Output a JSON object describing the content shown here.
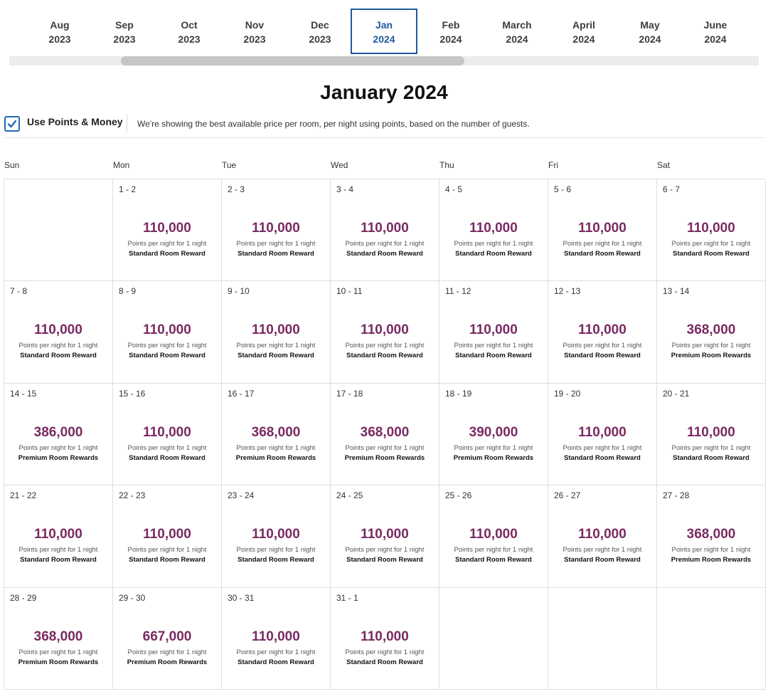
{
  "months": [
    {
      "month": "Aug",
      "year": "2023"
    },
    {
      "month": "Sep",
      "year": "2023"
    },
    {
      "month": "Oct",
      "year": "2023"
    },
    {
      "month": "Nov",
      "year": "2023"
    },
    {
      "month": "Dec",
      "year": "2023"
    },
    {
      "month": "Jan",
      "year": "2024",
      "selected": true
    },
    {
      "month": "Feb",
      "year": "2024"
    },
    {
      "month": "March",
      "year": "2024"
    },
    {
      "month": "April",
      "year": "2024"
    },
    {
      "month": "May",
      "year": "2024"
    },
    {
      "month": "June",
      "year": "2024"
    }
  ],
  "title": "January 2024",
  "options": {
    "use_points_label": "Use Points & Money",
    "use_points_checked": true,
    "info": "We're showing the best available price per room, per night using points, based on the number of guests."
  },
  "weekdays": [
    "Sun",
    "Mon",
    "Tue",
    "Wed",
    "Thu",
    "Fri",
    "Sat"
  ],
  "points_caption": "Points per night for 1 night",
  "colors": {
    "price": "#7a2a62",
    "accent": "#1f5a9e"
  },
  "days": [
    null,
    {
      "range": "1 - 2",
      "points": "110,000",
      "room": "Standard Room Reward"
    },
    {
      "range": "2 - 3",
      "points": "110,000",
      "room": "Standard Room Reward"
    },
    {
      "range": "3 - 4",
      "points": "110,000",
      "room": "Standard Room Reward"
    },
    {
      "range": "4 - 5",
      "points": "110,000",
      "room": "Standard Room Reward"
    },
    {
      "range": "5 - 6",
      "points": "110,000",
      "room": "Standard Room Reward"
    },
    {
      "range": "6 - 7",
      "points": "110,000",
      "room": "Standard Room Reward"
    },
    {
      "range": "7 - 8",
      "points": "110,000",
      "room": "Standard Room Reward"
    },
    {
      "range": "8 - 9",
      "points": "110,000",
      "room": "Standard Room Reward"
    },
    {
      "range": "9 - 10",
      "points": "110,000",
      "room": "Standard Room Reward"
    },
    {
      "range": "10 - 11",
      "points": "110,000",
      "room": "Standard Room Reward"
    },
    {
      "range": "11 - 12",
      "points": "110,000",
      "room": "Standard Room Reward"
    },
    {
      "range": "12 - 13",
      "points": "110,000",
      "room": "Standard Room Reward"
    },
    {
      "range": "13 - 14",
      "points": "368,000",
      "room": "Premium Room Rewards"
    },
    {
      "range": "14 - 15",
      "points": "386,000",
      "room": "Premium Room Rewards"
    },
    {
      "range": "15 - 16",
      "points": "110,000",
      "room": "Standard Room Reward"
    },
    {
      "range": "16 - 17",
      "points": "368,000",
      "room": "Premium Room Rewards"
    },
    {
      "range": "17 - 18",
      "points": "368,000",
      "room": "Premium Room Rewards"
    },
    {
      "range": "18 - 19",
      "points": "390,000",
      "room": "Premium Room Rewards"
    },
    {
      "range": "19 - 20",
      "points": "110,000",
      "room": "Standard Room Reward"
    },
    {
      "range": "20 - 21",
      "points": "110,000",
      "room": "Standard Room Reward"
    },
    {
      "range": "21 - 22",
      "points": "110,000",
      "room": "Standard Room Reward"
    },
    {
      "range": "22 - 23",
      "points": "110,000",
      "room": "Standard Room Reward"
    },
    {
      "range": "23 - 24",
      "points": "110,000",
      "room": "Standard Room Reward"
    },
    {
      "range": "24 - 25",
      "points": "110,000",
      "room": "Standard Room Reward"
    },
    {
      "range": "25 - 26",
      "points": "110,000",
      "room": "Standard Room Reward"
    },
    {
      "range": "26 - 27",
      "points": "110,000",
      "room": "Standard Room Reward"
    },
    {
      "range": "27 - 28",
      "points": "368,000",
      "room": "Premium Room Rewards"
    },
    {
      "range": "28 - 29",
      "points": "368,000",
      "room": "Premium Room Rewards"
    },
    {
      "range": "29 - 30",
      "points": "667,000",
      "room": "Premium Room Rewards"
    },
    {
      "range": "30 - 31",
      "points": "110,000",
      "room": "Standard Room Reward"
    },
    {
      "range": "31 - 1",
      "points": "110,000",
      "room": "Standard Room Reward"
    },
    null,
    null,
    null
  ]
}
